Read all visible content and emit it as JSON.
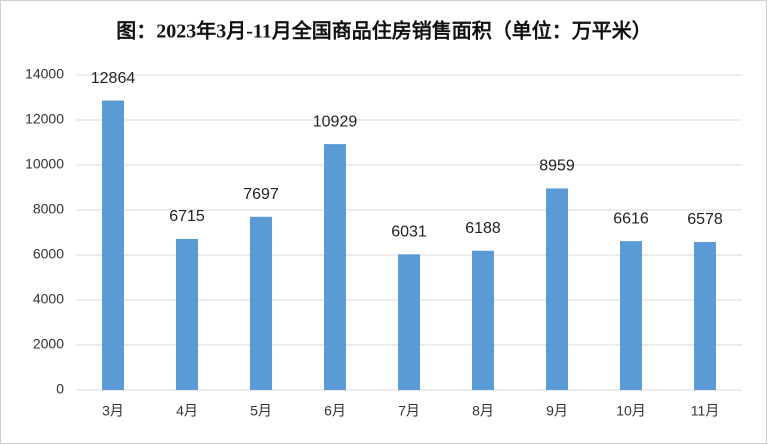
{
  "chart_data": {
    "type": "bar",
    "title": "图：2023年3月-11月全国商品住房销售面积（单位：万平米）",
    "categories": [
      "3月",
      "4月",
      "5月",
      "6月",
      "7月",
      "8月",
      "9月",
      "10月",
      "11月"
    ],
    "values": [
      12864,
      6715,
      7697,
      10929,
      6031,
      6188,
      8959,
      6616,
      6578
    ],
    "color": "#5b9bd5",
    "ylim": [
      0,
      14000
    ],
    "yticks": [
      0,
      2000,
      4000,
      6000,
      8000,
      10000,
      12000,
      14000
    ],
    "grid": true
  }
}
